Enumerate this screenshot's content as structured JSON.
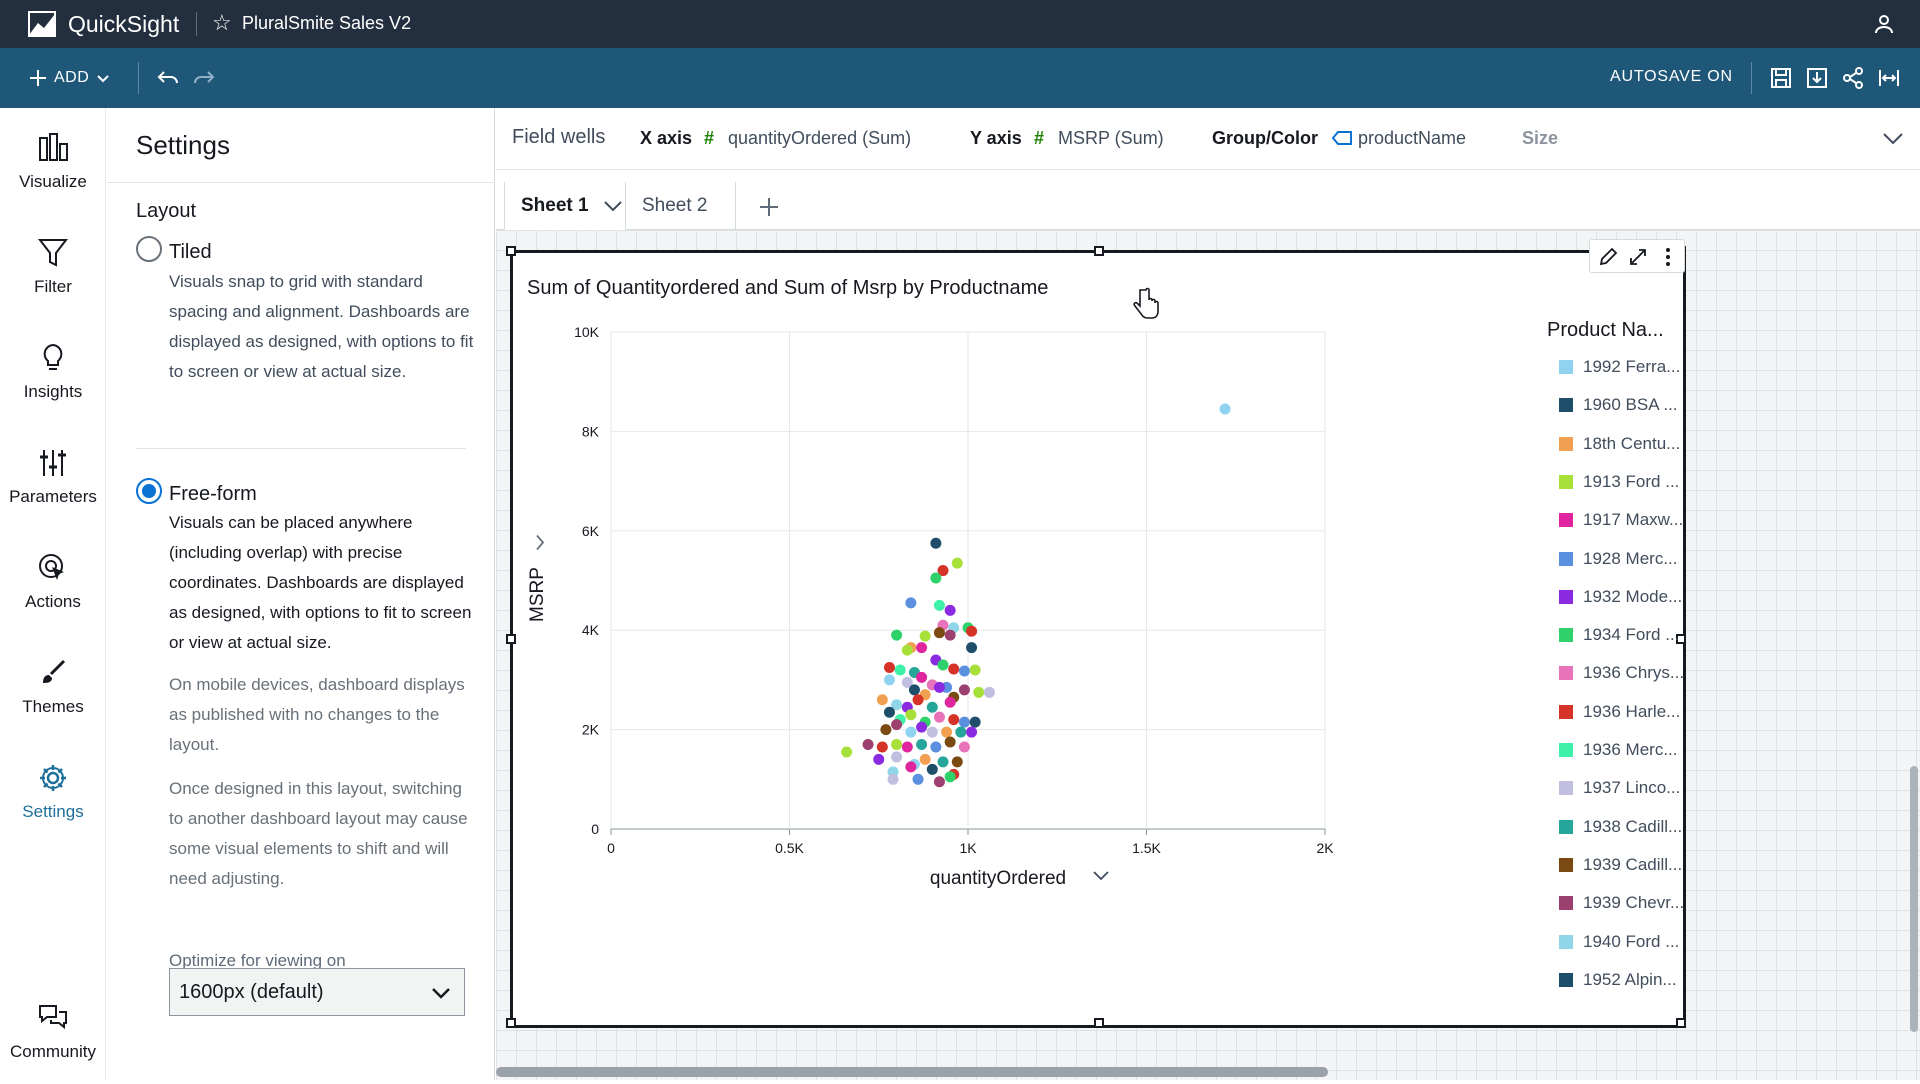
{
  "app": {
    "name": "QuickSight",
    "analysis_name": "PluralSmite Sales V2"
  },
  "toolbar": {
    "add_label": "ADD",
    "autosave_label": "AUTOSAVE ON"
  },
  "sidenav": [
    {
      "label": "Visualize",
      "icon": "visualize-icon"
    },
    {
      "label": "Filter",
      "icon": "filter-icon"
    },
    {
      "label": "Insights",
      "icon": "insights-icon"
    },
    {
      "label": "Parameters",
      "icon": "parameters-icon"
    },
    {
      "label": "Actions",
      "icon": "actions-icon"
    },
    {
      "label": "Themes",
      "icon": "themes-icon"
    },
    {
      "label": "Settings",
      "icon": "settings-icon"
    },
    {
      "label": "Community",
      "icon": "community-icon"
    }
  ],
  "settings": {
    "title": "Settings",
    "layout_label": "Layout",
    "tiled_label": "Tiled",
    "tiled_desc": "Visuals snap to grid with standard spacing and alignment. Dashboards are displayed as designed, with options to fit to screen or view at actual size.",
    "freeform_label": "Free-form",
    "freeform_desc": "Visuals can be placed anywhere (including overlap) with precise coordinates. Dashboards are displayed as designed, with options to fit to screen or view at actual size.",
    "mobile_note": "On mobile devices, dashboard displays as published with no changes to the layout.",
    "switch_note": "Once designed in this layout, switching to another dashboard layout may cause some visual elements to shift and will need adjusting.",
    "optimize_label": "Optimize for viewing on",
    "optimize_value": "1600px (default)"
  },
  "field_wells": {
    "title": "Field wells",
    "x_label": "X axis",
    "x_value": "quantityOrdered (Sum)",
    "y_label": "Y axis",
    "y_value": "MSRP (Sum)",
    "group_label": "Group/Color",
    "group_value": "productName",
    "size_label": "Size"
  },
  "sheets": [
    "Sheet 1",
    "Sheet 2"
  ],
  "chart_data": {
    "type": "scatter",
    "title": "Sum of Quantityordered and Sum of Msrp by Productname",
    "xlabel": "quantityOrdered",
    "ylabel": "MSRP",
    "xlim": [
      0,
      2000
    ],
    "ylim": [
      0,
      10000
    ],
    "x_ticks": [
      "0",
      "0.5K",
      "1K",
      "1.5K",
      "2K"
    ],
    "y_ticks": [
      "0",
      "2K",
      "4K",
      "6K",
      "8K",
      "10K"
    ],
    "grid": true,
    "legend_title": "Product Na...",
    "legend_placement": "right",
    "legend": [
      {
        "name": "1992 Ferra...",
        "color": "#8fd3f0"
      },
      {
        "name": "1960 BSA ...",
        "color": "#1f4e6b"
      },
      {
        "name": "18th Centu...",
        "color": "#f0a050"
      },
      {
        "name": "1913 Ford ...",
        "color": "#a8e03a"
      },
      {
        "name": "1917 Maxw...",
        "color": "#e0269e"
      },
      {
        "name": "1928 Merc...",
        "color": "#5b8fe0"
      },
      {
        "name": "1932 Mode...",
        "color": "#8a2be2"
      },
      {
        "name": "1934 Ford ...",
        "color": "#2ed16a"
      },
      {
        "name": "1936 Chrys...",
        "color": "#e873b8"
      },
      {
        "name": "1936 Harle...",
        "color": "#d63328"
      },
      {
        "name": "1936 Merc...",
        "color": "#3ef0a8"
      },
      {
        "name": "1937 Linco...",
        "color": "#c0bfe0"
      },
      {
        "name": "1938 Cadill...",
        "color": "#26a69a"
      },
      {
        "name": "1939 Cadill...",
        "color": "#7a4a12"
      },
      {
        "name": "1939 Chevr...",
        "color": "#9c4070"
      },
      {
        "name": "1940 Ford ...",
        "color": "#8fd6e8"
      },
      {
        "name": "1952 Alpin...",
        "color": "#1f4e6b"
      }
    ],
    "points": [
      {
        "x": 1720,
        "y": 8450,
        "c": 0
      },
      {
        "x": 910,
        "y": 5750,
        "c": 1
      },
      {
        "x": 970,
        "y": 5350,
        "c": 3
      },
      {
        "x": 930,
        "y": 5200,
        "c": 9
      },
      {
        "x": 910,
        "y": 5050,
        "c": 7
      },
      {
        "x": 840,
        "y": 4550,
        "c": 5
      },
      {
        "x": 920,
        "y": 4500,
        "c": 10
      },
      {
        "x": 950,
        "y": 4400,
        "c": 6
      },
      {
        "x": 930,
        "y": 4100,
        "c": 8
      },
      {
        "x": 960,
        "y": 4050,
        "c": 15
      },
      {
        "x": 1000,
        "y": 4050,
        "c": 7
      },
      {
        "x": 1010,
        "y": 3980,
        "c": 9
      },
      {
        "x": 800,
        "y": 3900,
        "c": 7
      },
      {
        "x": 880,
        "y": 3880,
        "c": 3
      },
      {
        "x": 920,
        "y": 3950,
        "c": 13
      },
      {
        "x": 950,
        "y": 3900,
        "c": 14
      },
      {
        "x": 1010,
        "y": 3650,
        "c": 1
      },
      {
        "x": 840,
        "y": 3650,
        "c": 2
      },
      {
        "x": 830,
        "y": 3600,
        "c": 3
      },
      {
        "x": 870,
        "y": 3650,
        "c": 4
      },
      {
        "x": 910,
        "y": 3400,
        "c": 6
      },
      {
        "x": 930,
        "y": 3300,
        "c": 7
      },
      {
        "x": 960,
        "y": 3220,
        "c": 9
      },
      {
        "x": 990,
        "y": 3180,
        "c": 5
      },
      {
        "x": 1020,
        "y": 3200,
        "c": 3
      },
      {
        "x": 780,
        "y": 3250,
        "c": 9
      },
      {
        "x": 810,
        "y": 3200,
        "c": 10
      },
      {
        "x": 850,
        "y": 3150,
        "c": 12
      },
      {
        "x": 870,
        "y": 3050,
        "c": 4
      },
      {
        "x": 900,
        "y": 2900,
        "c": 8
      },
      {
        "x": 940,
        "y": 2850,
        "c": 5
      },
      {
        "x": 830,
        "y": 2950,
        "c": 11
      },
      {
        "x": 780,
        "y": 3000,
        "c": 0
      },
      {
        "x": 850,
        "y": 2800,
        "c": 1
      },
      {
        "x": 880,
        "y": 2700,
        "c": 2
      },
      {
        "x": 920,
        "y": 2850,
        "c": 6
      },
      {
        "x": 960,
        "y": 2650,
        "c": 13
      },
      {
        "x": 990,
        "y": 2800,
        "c": 14
      },
      {
        "x": 1030,
        "y": 2750,
        "c": 3
      },
      {
        "x": 1060,
        "y": 2750,
        "c": 11
      },
      {
        "x": 760,
        "y": 2600,
        "c": 2
      },
      {
        "x": 800,
        "y": 2500,
        "c": 15
      },
      {
        "x": 830,
        "y": 2450,
        "c": 6
      },
      {
        "x": 860,
        "y": 2600,
        "c": 9
      },
      {
        "x": 900,
        "y": 2450,
        "c": 12
      },
      {
        "x": 950,
        "y": 2550,
        "c": 4
      },
      {
        "x": 780,
        "y": 2350,
        "c": 1
      },
      {
        "x": 810,
        "y": 2200,
        "c": 10
      },
      {
        "x": 840,
        "y": 2300,
        "c": 3
      },
      {
        "x": 880,
        "y": 2150,
        "c": 7
      },
      {
        "x": 920,
        "y": 2250,
        "c": 8
      },
      {
        "x": 960,
        "y": 2200,
        "c": 9
      },
      {
        "x": 990,
        "y": 2150,
        "c": 5
      },
      {
        "x": 1020,
        "y": 2150,
        "c": 1
      },
      {
        "x": 770,
        "y": 2000,
        "c": 13
      },
      {
        "x": 800,
        "y": 2100,
        "c": 14
      },
      {
        "x": 840,
        "y": 1950,
        "c": 0
      },
      {
        "x": 870,
        "y": 2050,
        "c": 6
      },
      {
        "x": 900,
        "y": 1950,
        "c": 11
      },
      {
        "x": 940,
        "y": 1950,
        "c": 2
      },
      {
        "x": 980,
        "y": 1950,
        "c": 12
      },
      {
        "x": 1010,
        "y": 1950,
        "c": 6
      },
      {
        "x": 720,
        "y": 1700,
        "c": 14
      },
      {
        "x": 760,
        "y": 1650,
        "c": 9
      },
      {
        "x": 800,
        "y": 1700,
        "c": 3
      },
      {
        "x": 830,
        "y": 1650,
        "c": 4
      },
      {
        "x": 870,
        "y": 1700,
        "c": 12
      },
      {
        "x": 910,
        "y": 1650,
        "c": 5
      },
      {
        "x": 950,
        "y": 1750,
        "c": 13
      },
      {
        "x": 990,
        "y": 1650,
        "c": 8
      },
      {
        "x": 660,
        "y": 1550,
        "c": 3
      },
      {
        "x": 750,
        "y": 1400,
        "c": 6
      },
      {
        "x": 800,
        "y": 1450,
        "c": 11
      },
      {
        "x": 850,
        "y": 1300,
        "c": 0
      },
      {
        "x": 880,
        "y": 1400,
        "c": 2
      },
      {
        "x": 930,
        "y": 1350,
        "c": 12
      },
      {
        "x": 970,
        "y": 1350,
        "c": 13
      },
      {
        "x": 790,
        "y": 1150,
        "c": 15
      },
      {
        "x": 840,
        "y": 1250,
        "c": 4
      },
      {
        "x": 900,
        "y": 1200,
        "c": 1
      },
      {
        "x": 960,
        "y": 1100,
        "c": 9
      },
      {
        "x": 790,
        "y": 1000,
        "c": 11
      },
      {
        "x": 860,
        "y": 1000,
        "c": 5
      },
      {
        "x": 920,
        "y": 950,
        "c": 14
      },
      {
        "x": 950,
        "y": 1050,
        "c": 7
      }
    ]
  }
}
